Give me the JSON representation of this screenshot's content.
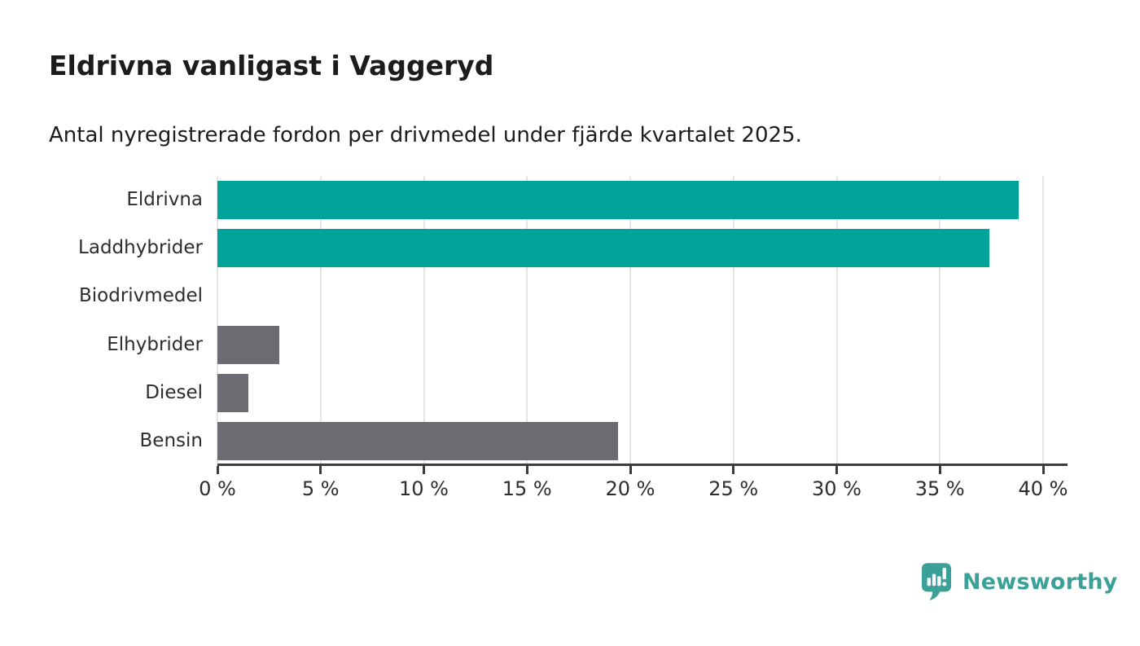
{
  "title": "Eldrivna vanligast i Vaggeryd",
  "subtitle": "Antal nyregistrerade fordon per drivmedel under fjärde kvartalet 2025.",
  "branding": {
    "logo_text": "Newsworthy",
    "logo_icon": "newsworthy-chart-bubble-icon",
    "brand_color": "#3aa098"
  },
  "colors": {
    "highlight_bar": "#00a39a",
    "default_bar": "#6b6b71",
    "gridline": "#e6e6e6",
    "axis": "#3c3c3c",
    "text": "#1c1c1c"
  },
  "chart_data": {
    "type": "bar",
    "orientation": "horizontal",
    "title": "Eldrivna vanligast i Vaggeryd",
    "subtitle": "Antal nyregistrerade fordon per drivmedel under fjärde kvartalet 2025.",
    "categories": [
      "Eldrivna",
      "Laddhybrider",
      "Biodrivmedel",
      "Elhybrider",
      "Diesel",
      "Bensin"
    ],
    "values": [
      38.8,
      37.4,
      0,
      3.0,
      1.5,
      19.4
    ],
    "unit": "%",
    "xlim": [
      0,
      40
    ],
    "x_ticks": [
      0,
      5,
      10,
      15,
      20,
      25,
      30,
      35,
      40
    ],
    "x_tick_labels": [
      "0 %",
      "5 %",
      "10 %",
      "15 %",
      "20 %",
      "25 %",
      "30 %",
      "35 %",
      "40 %"
    ],
    "bar_colors": [
      "#00a39a",
      "#00a39a",
      "#6b6b71",
      "#6b6b71",
      "#6b6b71",
      "#6b6b71"
    ],
    "grid": "vertical",
    "legend": "none"
  }
}
